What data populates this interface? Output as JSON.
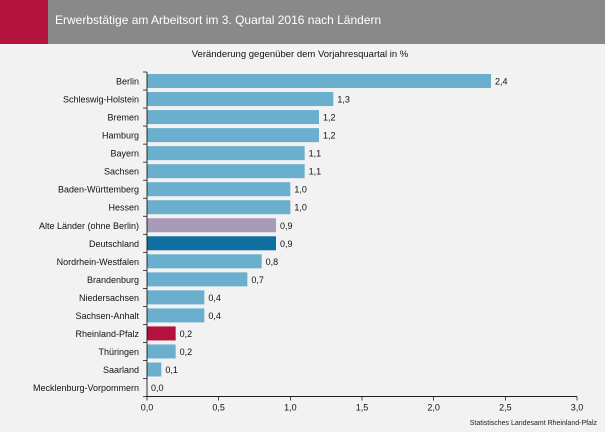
{
  "header": {
    "title": "Erwerbstätige am Arbeitsort im 3. Quartal 2016 nach Ländern",
    "accent_color": "#b3133c",
    "background_color": "#898989"
  },
  "source": "Statistisches Landesamt Rheinland-Pfalz",
  "chart_data": {
    "type": "bar",
    "orientation": "horizontal",
    "title": "Veränderung gegenüber dem Vorjahresquartal in %",
    "categories": [
      "Berlin",
      "Schleswig-Holstein",
      "Bremen",
      "Hamburg",
      "Bayern",
      "Sachsen",
      "Baden-Württemberg",
      "Hessen",
      "Alte Länder (ohne Berlin)",
      "Deutschland",
      "Nordrhein-Westfalen",
      "Brandenburg",
      "Niedersachsen",
      "Sachsen-Anhalt",
      "Rheinland-Pfalz",
      "Thüringen",
      "Saarland",
      "Mecklenburg-Vorpommern"
    ],
    "values": [
      2.4,
      1.3,
      1.2,
      1.2,
      1.1,
      1.1,
      1.0,
      1.0,
      0.9,
      0.9,
      0.8,
      0.7,
      0.4,
      0.4,
      0.2,
      0.2,
      0.1,
      0.0
    ],
    "value_labels": [
      "2,4",
      "1,3",
      "1,2",
      "1,2",
      "1,1",
      "1,1",
      "1,0",
      "1,0",
      "0,9",
      "0,9",
      "0,8",
      "0,7",
      "0,4",
      "0,4",
      "0,2",
      "0,2",
      "0,1",
      "0,0"
    ],
    "xlim": [
      0,
      3.0
    ],
    "xticks": [
      0,
      0.5,
      1.0,
      1.5,
      2.0,
      2.5,
      3.0
    ],
    "xtick_labels": [
      "0,0",
      "0,5",
      "1,0",
      "1,5",
      "2,0",
      "2,5",
      "3,0"
    ],
    "grid": false,
    "colors": {
      "default": "#6aafcd",
      "Alte Länder (ohne Berlin)": "#a89ab9",
      "Deutschland": "#0e6fa0",
      "Rheinland-Pfalz": "#b3133c"
    }
  }
}
